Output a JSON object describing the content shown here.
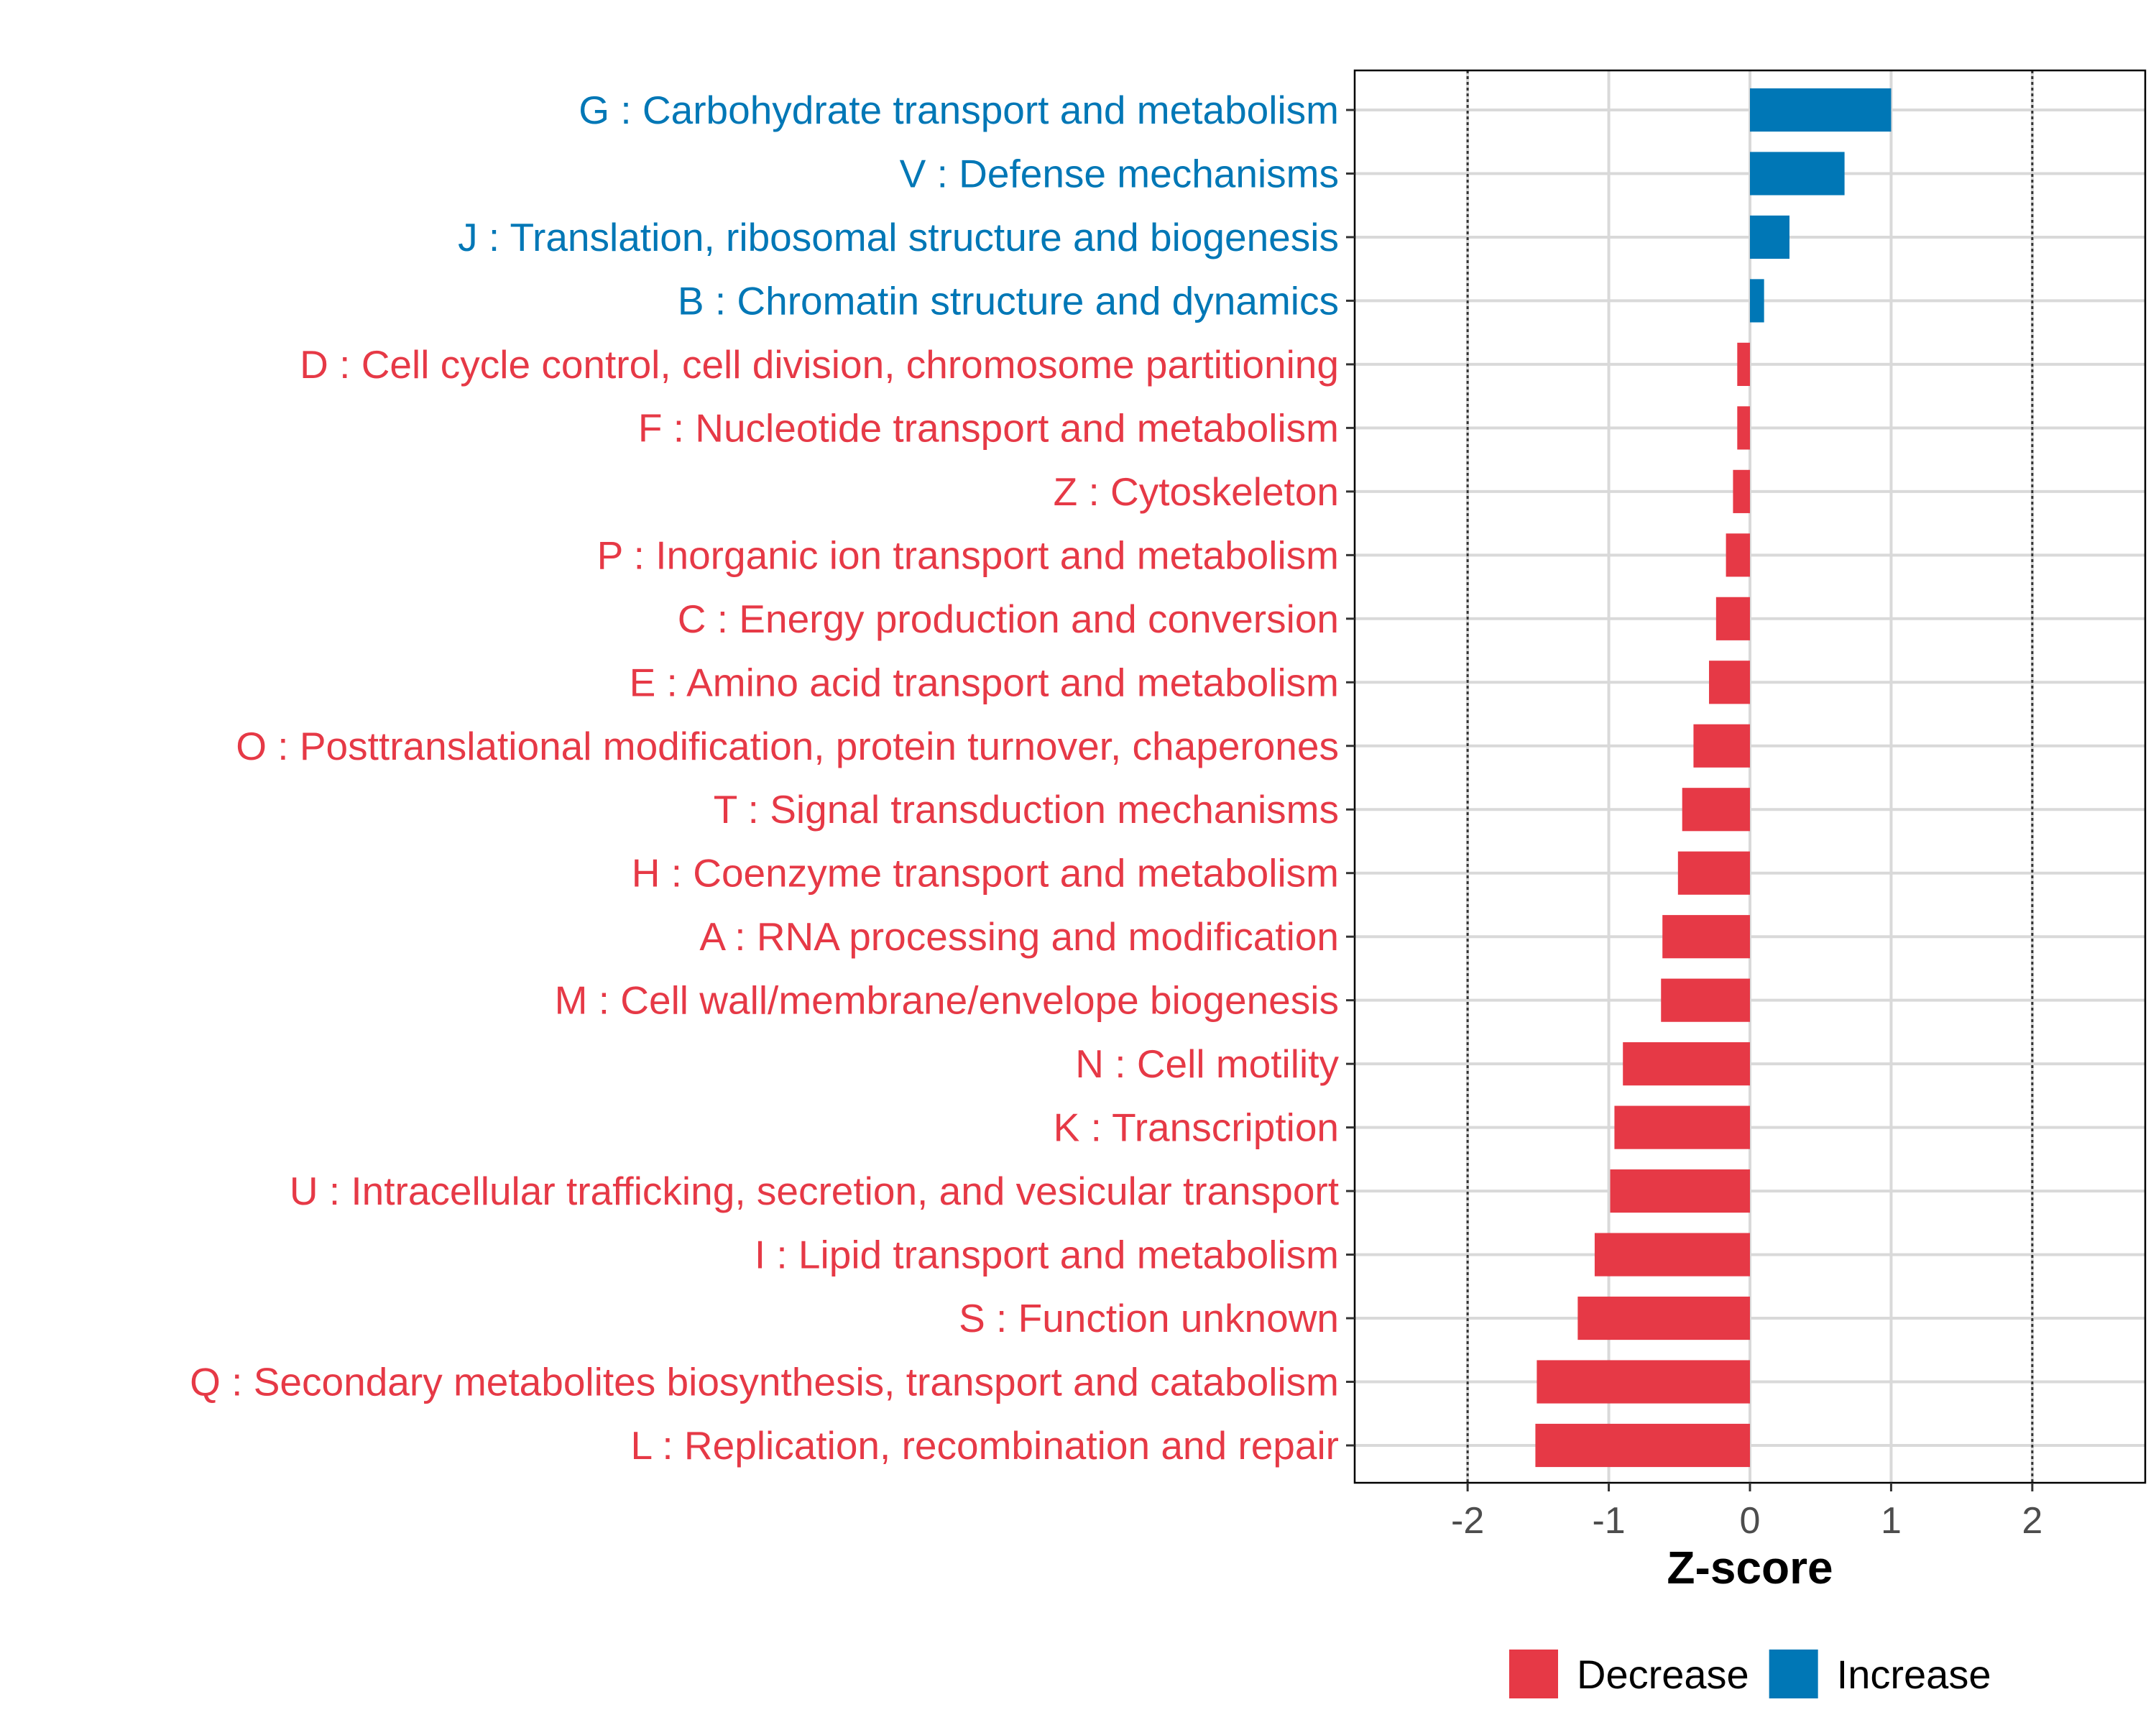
{
  "chart_data": {
    "type": "bar",
    "orientation": "horizontal",
    "title": "",
    "xlabel": "Z-score",
    "ylabel": "",
    "xlim": [
      -2.8,
      2.8
    ],
    "xticks": [
      -2,
      -1,
      0,
      1,
      2
    ],
    "xtick_labels": [
      "-2",
      "-1",
      "0",
      "1",
      "2"
    ],
    "reference_lines": [
      -2,
      2
    ],
    "grid": true,
    "legend_position": "bottom",
    "colors": {
      "Decrease": "#E63946",
      "Increase": "#0077B6"
    },
    "legend": [
      {
        "label": "Decrease",
        "color": "#E63946"
      },
      {
        "label": "Increase",
        "color": "#0077B6"
      }
    ],
    "bars": [
      {
        "label": "G : Carbohydrate transport and metabolism",
        "value": 1.0,
        "direction": "Increase"
      },
      {
        "label": "V : Defense mechanisms",
        "value": 0.67,
        "direction": "Increase"
      },
      {
        "label": "J : Translation, ribosomal structure and biogenesis",
        "value": 0.28,
        "direction": "Increase"
      },
      {
        "label": "B : Chromatin structure and dynamics",
        "value": 0.1,
        "direction": "Increase"
      },
      {
        "label": "D : Cell cycle control, cell division, chromosome partitioning",
        "value": -0.09,
        "direction": "Decrease"
      },
      {
        "label": "F : Nucleotide transport and metabolism",
        "value": -0.09,
        "direction": "Decrease"
      },
      {
        "label": "Z : Cytoskeleton",
        "value": -0.12,
        "direction": "Decrease"
      },
      {
        "label": "P : Inorganic ion transport and metabolism",
        "value": -0.17,
        "direction": "Decrease"
      },
      {
        "label": "C : Energy production and conversion",
        "value": -0.24,
        "direction": "Decrease"
      },
      {
        "label": "E : Amino acid transport and metabolism",
        "value": -0.29,
        "direction": "Decrease"
      },
      {
        "label": "O : Posttranslational modification, protein turnover, chaperones",
        "value": -0.4,
        "direction": "Decrease"
      },
      {
        "label": "T : Signal transduction mechanisms",
        "value": -0.48,
        "direction": "Decrease"
      },
      {
        "label": "H : Coenzyme transport and metabolism",
        "value": -0.51,
        "direction": "Decrease"
      },
      {
        "label": "A : RNA processing and modification",
        "value": -0.62,
        "direction": "Decrease"
      },
      {
        "label": "M : Cell wall/membrane/envelope biogenesis",
        "value": -0.63,
        "direction": "Decrease"
      },
      {
        "label": "N : Cell motility",
        "value": -0.9,
        "direction": "Decrease"
      },
      {
        "label": "K : Transcription",
        "value": -0.96,
        "direction": "Decrease"
      },
      {
        "label": "U : Intracellular trafficking, secretion, and vesicular transport",
        "value": -0.99,
        "direction": "Decrease"
      },
      {
        "label": "I : Lipid transport and metabolism",
        "value": -1.1,
        "direction": "Decrease"
      },
      {
        "label": "S : Function unknown",
        "value": -1.22,
        "direction": "Decrease"
      },
      {
        "label": "Q : Secondary metabolites biosynthesis, transport and catabolism",
        "value": -1.51,
        "direction": "Decrease"
      },
      {
        "label": "L : Replication, recombination and repair",
        "value": -1.52,
        "direction": "Decrease"
      }
    ]
  }
}
